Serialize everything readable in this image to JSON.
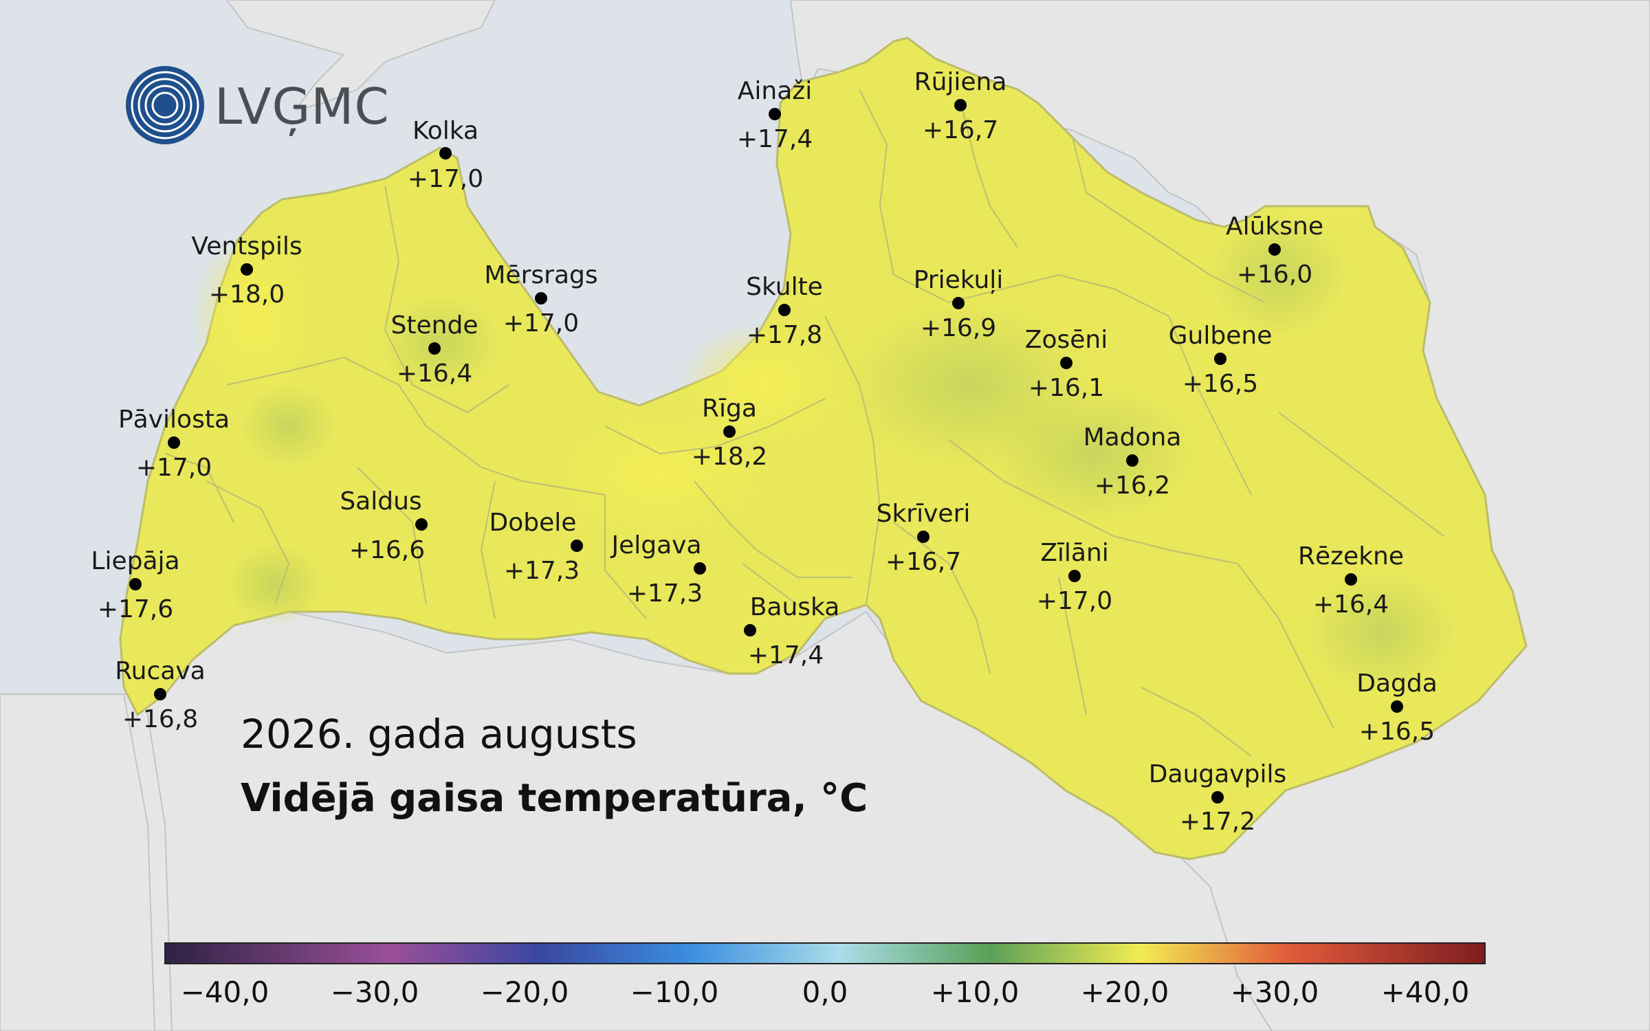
{
  "logo": {
    "text": "LVĢMC",
    "icon": "lvgmc-wave-logo-icon"
  },
  "caption": {
    "period": "2026. gada augusts",
    "title": "Vidējā gaisa temperatūra, °C"
  },
  "colors": {
    "sea": "#dde3e8",
    "neighbours": "#e6e6e6",
    "country_fill": "#e8e85a",
    "warm_patch": "#f2ec52",
    "cool_patch": "#c9d65a",
    "station_dot": "#000000"
  },
  "stations": [
    {
      "name": "Kolka",
      "value": "+17,0"
    },
    {
      "name": "Ventspils",
      "value": "+18,0"
    },
    {
      "name": "Mērsrags",
      "value": "+17,0"
    },
    {
      "name": "Stende",
      "value": "+16,4"
    },
    {
      "name": "Pāvilosta",
      "value": "+17,0"
    },
    {
      "name": "Saldus",
      "value": "+16,6"
    },
    {
      "name": "Liepāja",
      "value": "+17,6"
    },
    {
      "name": "Rucava",
      "value": "+16,8"
    },
    {
      "name": "Dobele",
      "value": "+17,3"
    },
    {
      "name": "Jelgava",
      "value": "+17,3"
    },
    {
      "name": "Bauska",
      "value": "+17,4"
    },
    {
      "name": "Rīga",
      "value": "+18,2"
    },
    {
      "name": "Skulte",
      "value": "+17,8"
    },
    {
      "name": "Ainaži",
      "value": "+17,4"
    },
    {
      "name": "Rūjiena",
      "value": "+16,7"
    },
    {
      "name": "Priekuļi",
      "value": "+16,9"
    },
    {
      "name": "Zosēni",
      "value": "+16,1"
    },
    {
      "name": "Alūksne",
      "value": "+16,0"
    },
    {
      "name": "Gulbene",
      "value": "+16,5"
    },
    {
      "name": "Madona",
      "value": "+16,2"
    },
    {
      "name": "Skrīveri",
      "value": "+16,7"
    },
    {
      "name": "Zīlāni",
      "value": "+17,0"
    },
    {
      "name": "Rēzekne",
      "value": "+16,4"
    },
    {
      "name": "Dagda",
      "value": "+16,5"
    },
    {
      "name": "Daugavpils",
      "value": "+17,2"
    }
  ],
  "legend": {
    "min": -45,
    "max": 43,
    "stops": [
      {
        "value": -45,
        "color": "#2e2244"
      },
      {
        "value": -30,
        "color": "#9a4f98"
      },
      {
        "value": -20,
        "color": "#3a47a0"
      },
      {
        "value": -10,
        "color": "#3b8ee0"
      },
      {
        "value": 0,
        "color": "#a9dde8"
      },
      {
        "value": 10,
        "color": "#5aa058"
      },
      {
        "value": 20,
        "color": "#f2ec52"
      },
      {
        "value": 30,
        "color": "#e05a3a"
      },
      {
        "value": 43,
        "color": "#7e1e20"
      }
    ],
    "ticks": [
      "−40,0",
      "−30,0",
      "−20,0",
      "−10,0",
      "0,0",
      "+10,0",
      "+20,0",
      "+30,0",
      "+40,0"
    ]
  }
}
